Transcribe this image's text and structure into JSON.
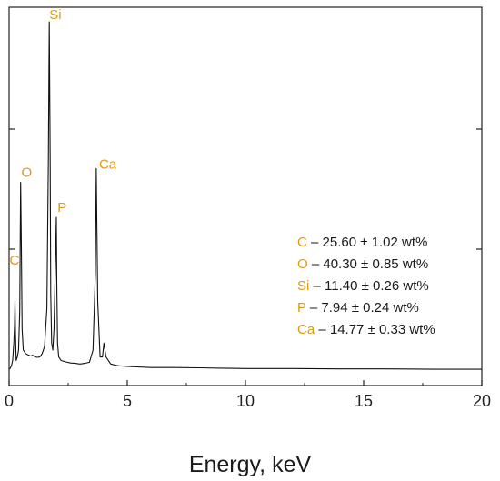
{
  "chart_data": {
    "type": "line",
    "title": "",
    "xlabel": "Energy, keV",
    "ylabel": "",
    "xlim": [
      0,
      20
    ],
    "ylim": [
      0,
      100
    ],
    "grid": false,
    "x_ticks": [
      "0",
      "5",
      "10",
      "15",
      "20"
    ],
    "accent_color": "#e09a10",
    "line_color": "#111111",
    "series": [
      {
        "x": [
          0.0,
          0.05,
          0.1,
          0.15,
          0.2,
          0.23,
          0.25,
          0.27,
          0.3,
          0.35,
          0.4,
          0.45,
          0.49,
          0.52,
          0.55,
          0.6,
          0.7,
          0.8,
          0.9,
          1.0,
          1.1,
          1.2,
          1.3,
          1.4,
          1.5,
          1.6,
          1.66,
          1.7,
          1.74,
          1.76,
          1.8,
          1.85,
          1.9,
          1.95,
          2.0,
          2.02,
          2.05,
          2.1,
          2.2,
          2.4,
          2.6,
          2.8,
          3.0,
          3.2,
          3.4,
          3.55,
          3.65,
          3.69,
          3.75,
          3.85,
          3.95,
          4.01,
          4.1,
          4.3,
          4.6,
          5.0,
          6.0,
          7.0,
          8.0,
          9.0,
          10.0,
          12.0,
          14.0,
          16.0,
          18.0,
          20.0
        ],
        "y": [
          0.5,
          0.8,
          1.5,
          3.0,
          8.0,
          13.0,
          20.0,
          11.0,
          3.0,
          4.0,
          6.0,
          17.0,
          54.0,
          35.0,
          12.0,
          6.0,
          5.0,
          4.6,
          4.3,
          4.5,
          4.0,
          3.9,
          4.0,
          5.0,
          7.0,
          18.0,
          60.0,
          100.0,
          60.0,
          22.0,
          8.0,
          6.0,
          12.0,
          28.0,
          44.0,
          25.0,
          8.0,
          4.0,
          3.0,
          2.6,
          2.3,
          2.2,
          2.0,
          2.2,
          2.5,
          6.0,
          28.0,
          58.0,
          20.0,
          4.0,
          4.0,
          8.0,
          4.0,
          2.0,
          1.5,
          1.3,
          1.0,
          1.0,
          0.9,
          0.8,
          0.7,
          0.7,
          0.6,
          0.6,
          0.5,
          0.5
        ]
      }
    ],
    "peaks": [
      {
        "label": "C",
        "x": 0.25,
        "y": 20
      },
      {
        "label": "O",
        "x": 0.52,
        "y": 54
      },
      {
        "label": "Si",
        "x": 1.74,
        "y": 100
      },
      {
        "label": "P",
        "x": 2.01,
        "y": 44
      },
      {
        "label": "Ca",
        "x": 3.69,
        "y": 58
      }
    ],
    "annotations": [
      {
        "element": "C",
        "text": " – 25.60 ± 1.02 wt%"
      },
      {
        "element": "O",
        "text": " – 40.30 ± 0.85 wt%"
      },
      {
        "element": "Si",
        "text": " – 11.40 ± 0.26 wt%"
      },
      {
        "element": "P",
        "text": " – 7.94 ± 0.24 wt%"
      },
      {
        "element": "Ca",
        "text": " – 14.77 ± 0.33 wt%"
      }
    ]
  }
}
